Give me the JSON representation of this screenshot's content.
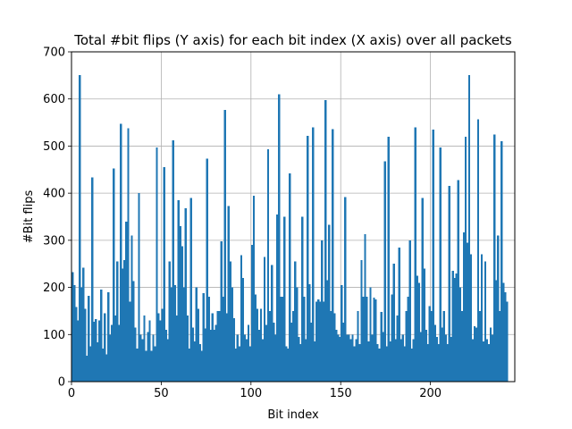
{
  "chart_data": {
    "type": "bar",
    "title": "Total #bit flips (Y axis) for each bit index (X axis) over all packets",
    "xlabel": "Bit index",
    "ylabel": "#Bit flips",
    "xlim": [
      0,
      247
    ],
    "ylim": [
      0,
      700
    ],
    "xticks": [
      0,
      50,
      100,
      150,
      200
    ],
    "yticks": [
      0,
      100,
      200,
      300,
      400,
      500,
      600,
      700
    ],
    "grid": true,
    "bar_color": "#1f77b4",
    "x_start": 0,
    "values": [
      232,
      205,
      158,
      130,
      651,
      200,
      242,
      155,
      55,
      182,
      75,
      433,
      127,
      133,
      83,
      130,
      195,
      70,
      145,
      58,
      190,
      100,
      120,
      452,
      140,
      255,
      120,
      547,
      240,
      258,
      340,
      538,
      170,
      310,
      213,
      115,
      70,
      400,
      100,
      90,
      140,
      65,
      105,
      130,
      65,
      100,
      75,
      497,
      145,
      130,
      155,
      455,
      110,
      90,
      255,
      200,
      512,
      205,
      140,
      385,
      330,
      287,
      200,
      368,
      140,
      70,
      390,
      115,
      85,
      200,
      155,
      80,
      65,
      188,
      113,
      473,
      180,
      110,
      145,
      110,
      120,
      150,
      150,
      298,
      180,
      577,
      145,
      373,
      255,
      200,
      135,
      70,
      100,
      75,
      268,
      220,
      100,
      90,
      120,
      75,
      290,
      395,
      185,
      155,
      110,
      155,
      90,
      265,
      120,
      493,
      150,
      248,
      125,
      100,
      355,
      610,
      180,
      180,
      350,
      75,
      70,
      442,
      125,
      150,
      255,
      200,
      95,
      80,
      350,
      180,
      90,
      522,
      207,
      125,
      540,
      85,
      170,
      175,
      170,
      300,
      170,
      598,
      215,
      333,
      150,
      536,
      145,
      110,
      100,
      95,
      205,
      125,
      392,
      100,
      100,
      90,
      100,
      75,
      90,
      150,
      80,
      258,
      180,
      313,
      180,
      85,
      200,
      100,
      178,
      175,
      80,
      70,
      148,
      105,
      468,
      75,
      520,
      85,
      185,
      250,
      90,
      140,
      285,
      90,
      100,
      75,
      150,
      180,
      300,
      70,
      90,
      540,
      225,
      210,
      105,
      390,
      240,
      110,
      80,
      160,
      150,
      535,
      120,
      95,
      80,
      497,
      115,
      150,
      100,
      80,
      415,
      95,
      235,
      220,
      230,
      428,
      200,
      150,
      317,
      520,
      295,
      651,
      270,
      90,
      118,
      115,
      557,
      150,
      270,
      85,
      255,
      90,
      80,
      115,
      100,
      525,
      215,
      310,
      150,
      510,
      210,
      190,
      170
    ]
  }
}
